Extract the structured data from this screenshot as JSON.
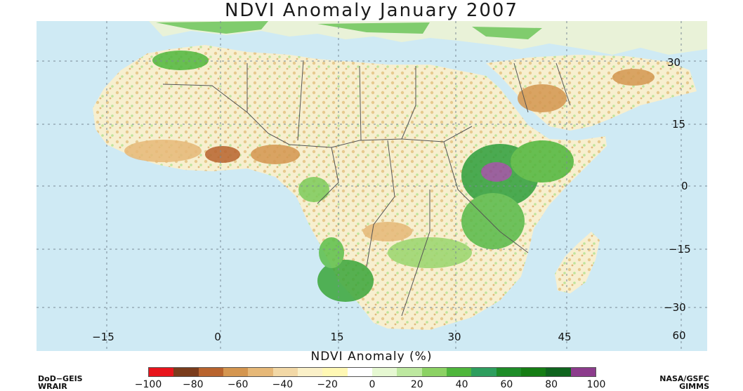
{
  "title": "NDVI Anomaly January 2007",
  "lon_labels": [
    "−15",
    "0",
    "15",
    "30",
    "45",
    "60"
  ],
  "lat_labels": [
    "30",
    "15",
    "0",
    "−15",
    "−30"
  ],
  "legend": {
    "title": "NDVI Anomaly (%)",
    "ticks": [
      "−100",
      "−80",
      "−60",
      "−40",
      "−20",
      "0",
      "20",
      "40",
      "60",
      "80",
      "100"
    ],
    "colors": [
      "#e8141c",
      "#7a3c1c",
      "#b8642e",
      "#d49650",
      "#e6b878",
      "#f2d8a6",
      "#faf0c8",
      "#fff8b4",
      "#ffffff",
      "#e6f8d2",
      "#bde8a0",
      "#8cd264",
      "#4fb63c",
      "#2e9e5e",
      "#1e8c28",
      "#157d14",
      "#0f641e",
      "#8c3c8c"
    ]
  },
  "credits": {
    "left_line1": "DoD−GEIS",
    "left_line2": "WRAIR",
    "right_line1": "NASA/GSFC",
    "right_line2": "GIMMS"
  }
}
